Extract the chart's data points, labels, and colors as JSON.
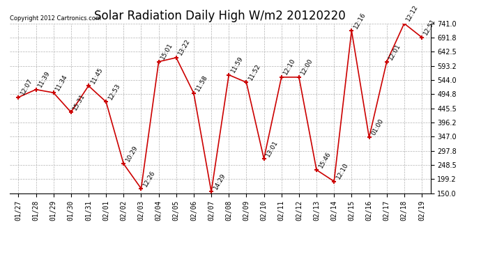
{
  "title": "Solar Radiation Daily High W/m2 20120220",
  "copyright": "Copyright 2012 Cartronics.com",
  "dates": [
    "01/27",
    "01/28",
    "01/29",
    "01/30",
    "01/31",
    "02/01",
    "02/02",
    "02/03",
    "02/04",
    "02/05",
    "02/06",
    "02/07",
    "02/08",
    "02/09",
    "02/10",
    "02/11",
    "02/12",
    "02/13",
    "02/14",
    "02/15",
    "02/16",
    "02/17",
    "02/18",
    "02/19"
  ],
  "values": [
    484,
    511,
    500,
    432,
    524,
    468,
    252,
    166,
    608,
    622,
    498,
    155,
    562,
    536,
    270,
    554,
    554,
    231,
    191,
    716,
    344,
    607,
    741,
    693
  ],
  "labels": [
    "12:07",
    "11:39",
    "11:34",
    "15:31",
    "11:45",
    "12:53",
    "10:29",
    "12:26",
    "15:01",
    "13:22",
    "11:58",
    "14:29",
    "11:59",
    "11:52",
    "13:01",
    "12:10",
    "12:00",
    "15:46",
    "12:10",
    "12:16",
    "01:00",
    "12:01",
    "12:12",
    "12:51"
  ],
  "line_color": "#cc0000",
  "marker_color": "#cc0000",
  "background_color": "#ffffff",
  "grid_color": "#aaaaaa",
  "ylim_min": 150.0,
  "ylim_max": 741.0,
  "yticks": [
    150.0,
    199.2,
    248.5,
    297.8,
    347.0,
    396.2,
    445.5,
    494.8,
    544.0,
    593.2,
    642.5,
    691.8,
    741.0
  ],
  "title_fontsize": 12,
  "label_fontsize": 6.5,
  "tick_fontsize": 7,
  "copyright_fontsize": 6
}
